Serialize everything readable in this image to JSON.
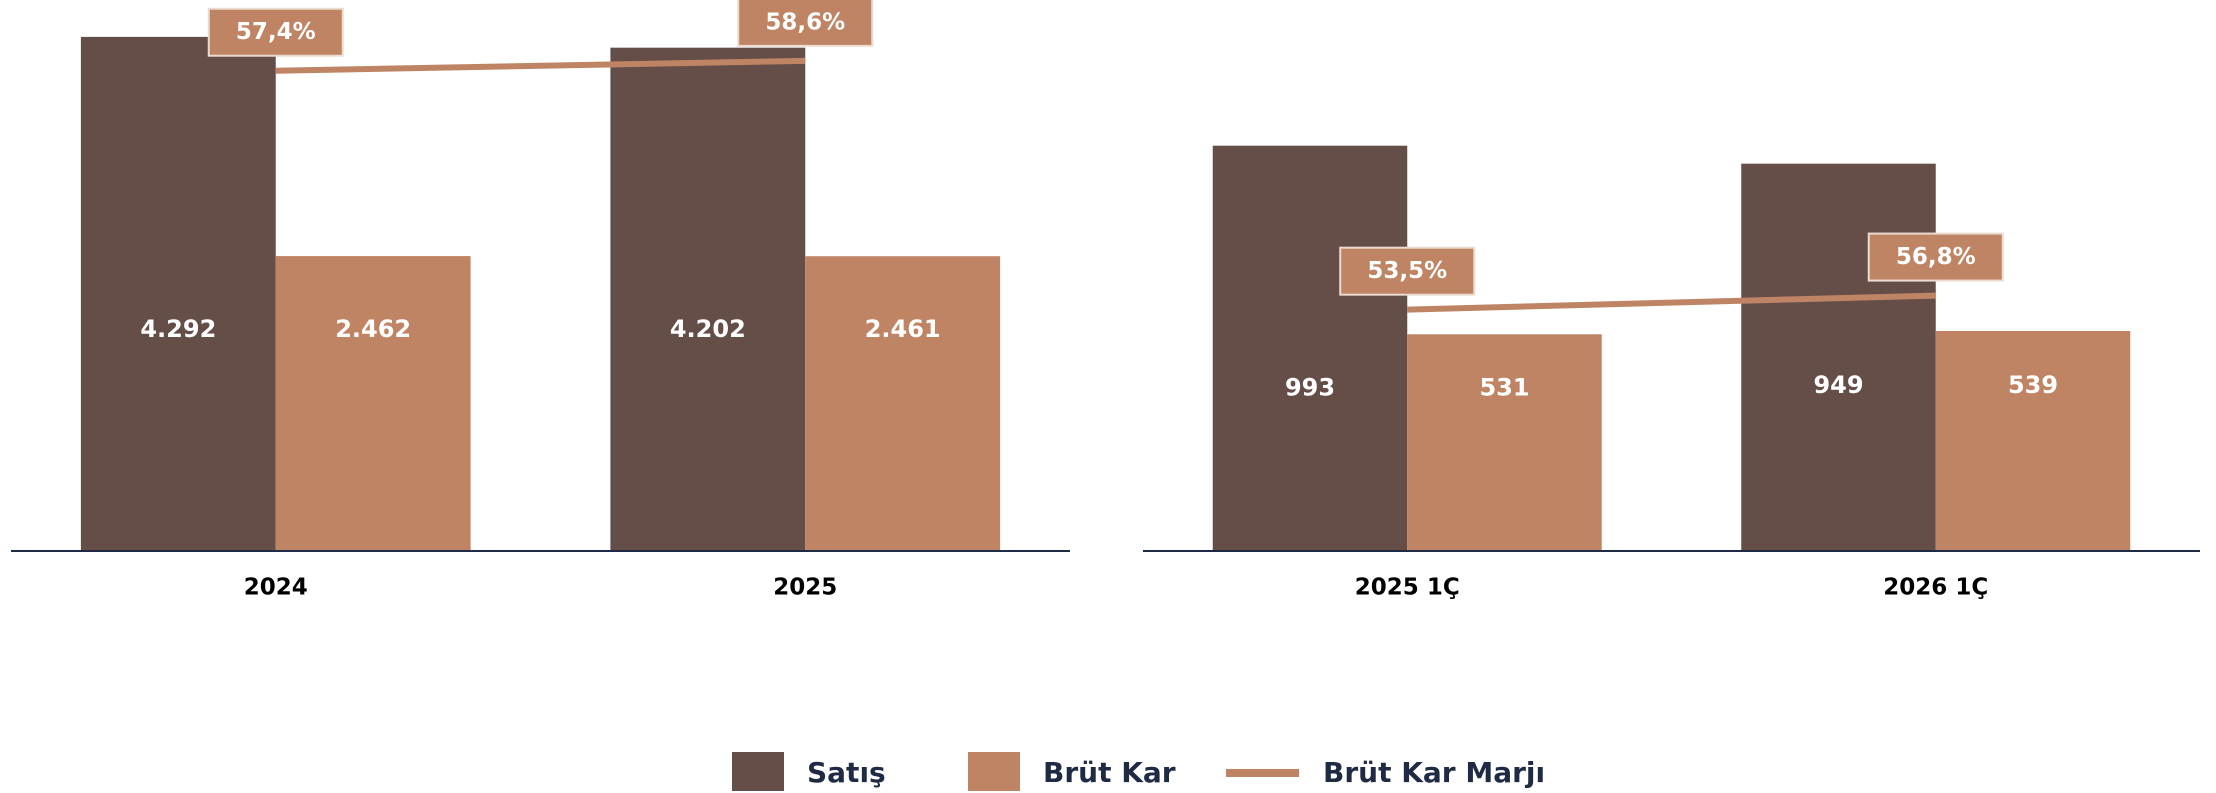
{
  "chart_data": [
    {
      "type": "bar",
      "categories": [
        "2024",
        "2025"
      ],
      "ylim": [
        0,
        4600
      ],
      "y2lim": [
        -1,
        66
      ],
      "series": [
        {
          "name": "Satış",
          "color": "#654e48",
          "values": [
            4292,
            4202
          ],
          "value_labels": [
            "4.292",
            "4.202"
          ]
        },
        {
          "name": "Brüt Kar",
          "color": "#bf8464",
          "values": [
            2462,
            2461
          ],
          "value_labels": [
            "2.462",
            "2.461"
          ]
        },
        {
          "name": "Brüt Kar Marjı",
          "type": "line",
          "axis": "y2",
          "color": "#bf8464",
          "values": [
            57.4,
            58.6
          ],
          "value_labels": [
            "57,4%",
            "58,6%"
          ]
        }
      ]
    },
    {
      "type": "bar",
      "categories": [
        "2025 1Ç",
        "2026 1Ç"
      ],
      "ylim": [
        0,
        1350
      ],
      "y2lim": [
        -3,
        126
      ],
      "series": [
        {
          "color": "#654e48",
          "values": [
            993,
            949
          ],
          "value_labels": [
            "993",
            "949"
          ]
        },
        {
          "color": "#bf8464",
          "values": [
            531,
            539
          ],
          "value_labels": [
            "531",
            "539"
          ]
        },
        {
          "type": "line",
          "axis": "y2",
          "color": "#bf8464",
          "values": [
            53.5,
            56.8
          ],
          "value_labels": [
            "53,5%",
            "56,8%"
          ]
        }
      ]
    }
  ]
}
